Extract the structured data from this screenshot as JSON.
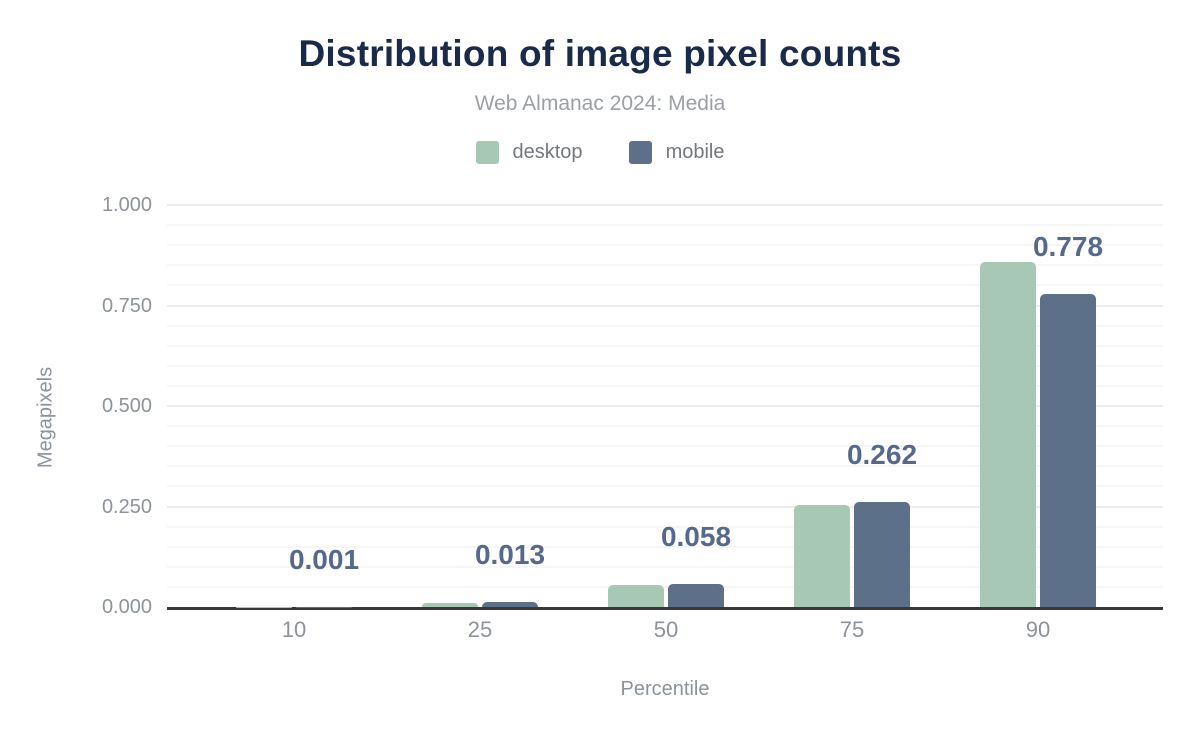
{
  "header": {
    "title": "Distribution of image pixel counts",
    "subtitle": "Web Almanac 2024: Media"
  },
  "colors": {
    "title": "#1a2b49",
    "subtitle": "#9aa0a6",
    "axis_text": "#8d939b",
    "axis_line": "#37383a",
    "annotation": "#56698c",
    "desktop": "#a6c8b5",
    "mobile": "#5c7089",
    "grid_major": "#ececec",
    "grid_minor": "#f6f6f6"
  },
  "chart_data": {
    "type": "bar",
    "title": "Distribution of image pixel counts",
    "subtitle": "Web Almanac 2024: Media",
    "xlabel": "Percentile",
    "ylabel": "Megapixels",
    "categories": [
      "10",
      "25",
      "50",
      "75",
      "90"
    ],
    "series": [
      {
        "name": "desktop",
        "color": "#a6c8b5",
        "values": [
          0.001,
          0.011,
          0.055,
          0.254,
          0.858
        ]
      },
      {
        "name": "mobile",
        "color": "#5c7089",
        "values": [
          0.001,
          0.013,
          0.058,
          0.262,
          0.778
        ]
      }
    ],
    "annotations": {
      "series": "mobile",
      "labels": [
        "0.001",
        "0.013",
        "0.058",
        "0.262",
        "0.778"
      ]
    },
    "ylim": [
      0,
      1.0
    ],
    "yticks": [
      "0.000",
      "0.250",
      "0.500",
      "0.750",
      "1.000"
    ],
    "ytick_values": [
      0,
      0.25,
      0.5,
      0.75,
      1.0
    ],
    "minor_grid_step": 0.05,
    "major_grid_step": 0.25,
    "grid": true,
    "legend_position": "top"
  }
}
